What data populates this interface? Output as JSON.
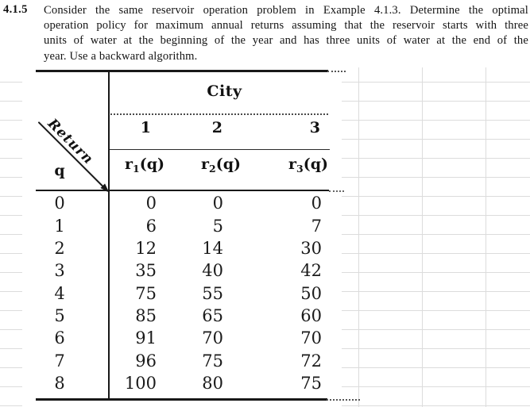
{
  "problem": {
    "number": "4.1.5",
    "lines": [
      "Consider the same reservoir operation problem in Example 4.1.3. Determine the optimal",
      "operation policy for maximum annual returns assuming that the reservoir starts with three",
      "units of water at the beginning of the year and has three units of water at the end of the",
      "year. Use a backward algorithm."
    ]
  },
  "table": {
    "group_header": "City",
    "corner": {
      "diagonal_label": "Return",
      "row_var": "q"
    },
    "column_numbers": [
      "1",
      "2",
      "3"
    ],
    "return_headers": [
      {
        "base": "r",
        "sub": "1",
        "tail": "(q)"
      },
      {
        "base": "r",
        "sub": "2",
        "tail": "(q)"
      },
      {
        "base": "r",
        "sub": "3",
        "tail": "(q)"
      }
    ],
    "rows": [
      [
        "0",
        "0",
        "0",
        "0"
      ],
      [
        "1",
        "6",
        "5",
        "7"
      ],
      [
        "2",
        "12",
        "14",
        "30"
      ],
      [
        "3",
        "35",
        "40",
        "42"
      ],
      [
        "4",
        "75",
        "55",
        "50"
      ],
      [
        "5",
        "85",
        "65",
        "60"
      ],
      [
        "6",
        "91",
        "70",
        "70"
      ],
      [
        "7",
        "96",
        "75",
        "72"
      ],
      [
        "8",
        "100",
        "80",
        "75"
      ]
    ]
  }
}
